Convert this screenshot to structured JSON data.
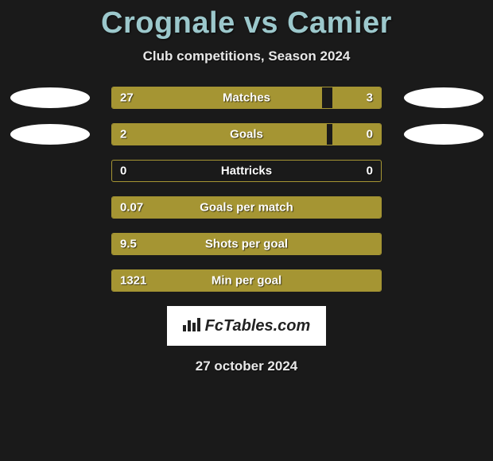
{
  "title": "Crognale vs Camier",
  "subtitle": "Club competitions, Season 2024",
  "date": "27 october 2024",
  "logo_text": "FcTables.com",
  "colors": {
    "title": "#9cc8cc",
    "bar_fill": "#a59533",
    "bar_border": "#a59533",
    "background": "#1a1a1a",
    "text": "#e8e8e8",
    "value_text": "#ffffff"
  },
  "rows": [
    {
      "label": "Matches",
      "left_value": "27",
      "right_value": "3",
      "left_pct": 78,
      "right_pct": 18,
      "show_left_oval": true,
      "show_right_oval": true
    },
    {
      "label": "Goals",
      "left_value": "2",
      "right_value": "0",
      "left_pct": 80,
      "right_pct": 18,
      "show_left_oval": true,
      "show_right_oval": true
    },
    {
      "label": "Hattricks",
      "left_value": "0",
      "right_value": "0",
      "left_pct": 0,
      "right_pct": 0,
      "show_left_oval": false,
      "show_right_oval": false
    },
    {
      "label": "Goals per match",
      "left_value": "0.07",
      "right_value": "",
      "left_pct": 100,
      "right_pct": 0,
      "show_left_oval": false,
      "show_right_oval": false
    },
    {
      "label": "Shots per goal",
      "left_value": "9.5",
      "right_value": "",
      "left_pct": 100,
      "right_pct": 0,
      "show_left_oval": false,
      "show_right_oval": false
    },
    {
      "label": "Min per goal",
      "left_value": "1321",
      "right_value": "",
      "left_pct": 100,
      "right_pct": 0,
      "show_left_oval": false,
      "show_right_oval": false
    }
  ]
}
